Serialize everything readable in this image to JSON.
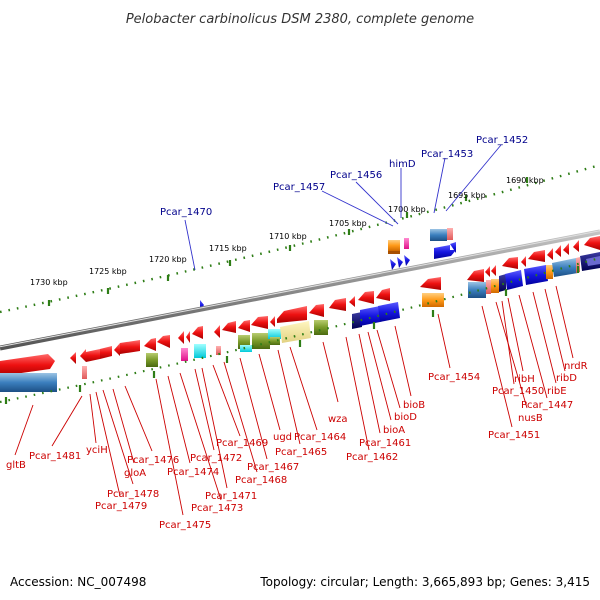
{
  "title": "Pelobacter carbinolicus DSM 2380, complete genome",
  "footer": {
    "accession": "Accession: NC_007498",
    "topology": "Topology: circular; Length: 3,665,893 bp; Genes: 3,415"
  },
  "scale_ticks": [
    "1730 kbp",
    "1725 kbp",
    "1720 kbp",
    "1715 kbp",
    "1710 kbp",
    "1705 kbp",
    "1700 kbp",
    "1695 kbp",
    "1690 kbp"
  ],
  "upper_labels": [
    "Pcar_1470",
    "Pcar_1457",
    "Pcar_1456",
    "himD",
    "Pcar_1453",
    "Pcar_1452"
  ],
  "lower_labels": [
    "gltB",
    "Pcar_1481",
    "yciH",
    "Pcar_1478",
    "Pcar_1479",
    "gloA",
    "Pcar_1476",
    "Pcar_1475",
    "Pcar_1474",
    "Pcar_1473",
    "Pcar_1472",
    "Pcar_1471",
    "Pcar_1469",
    "Pcar_1468",
    "Pcar_1467",
    "ugd",
    "Pcar_1465",
    "Pcar_1464",
    "wza",
    "Pcar_1462",
    "Pcar_1461",
    "bioA",
    "bioD",
    "bioB",
    "Pcar_1454",
    "Pcar_1451",
    "nusB",
    "Pcar_1450",
    "ribH",
    "Pcar_1447",
    "ribE",
    "ribD",
    "nrdR"
  ],
  "colors": {
    "gene_red": "#e8141c",
    "gene_blue": "#1a1adc",
    "backbone": "#7a7a7a",
    "tick_green": "#2e7d16",
    "label_blue": "#00008b",
    "label_red": "#cc0000"
  }
}
